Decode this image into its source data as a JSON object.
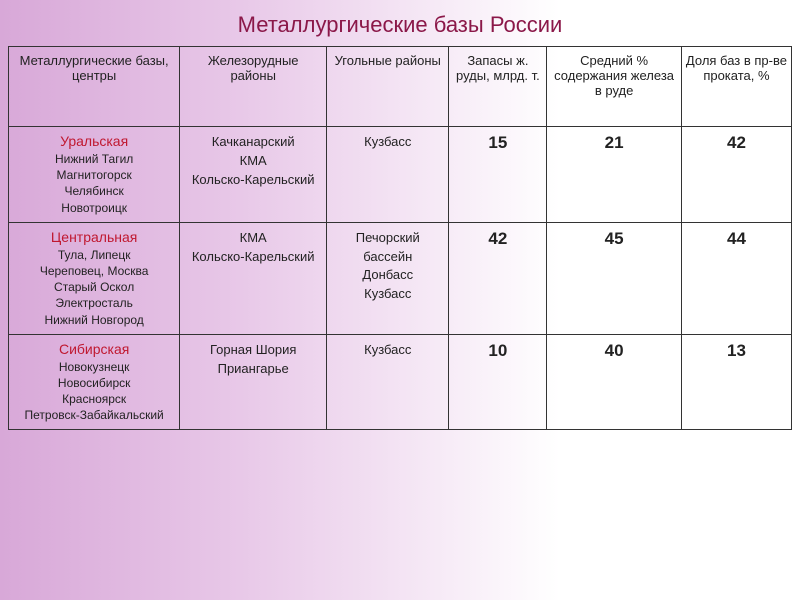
{
  "title": "Металлургические базы России",
  "headers": {
    "c1": "Металлургические базы, центры",
    "c2": "Железорудные районы",
    "c3": "Угольные районы",
    "c4": "Запасы ж. руды, млрд. т.",
    "c5": "Средний % содержания железа в руде",
    "c6": "Доля баз в пр-ве проката, %"
  },
  "rows": [
    {
      "base": "Уральская",
      "cities": "Нижний Тагил\nМагнитогорск\nЧелябинск\nНовотроицк",
      "iron_regions": "Качканарский\nКМА\nКольско-Карельский",
      "coal_regions": "Кузбасс",
      "reserves": "15",
      "iron_pct": "21",
      "share": "42"
    },
    {
      "base": "Центральная",
      "cities": "Тула, Липецк\nЧереповец, Москва\nСтарый Оскол\nЭлектросталь\nНижний Новгород",
      "iron_regions": "КМА\nКольско-Карельский",
      "coal_regions": "Печорский бассейн\nДонбасс\nКузбасс",
      "reserves": "42",
      "iron_pct": "45",
      "share": "44"
    },
    {
      "base": "Сибирская",
      "cities": "Новокузнецк\nНовосибирск\nКрасноярск\nПетровск-Забайкальский",
      "iron_regions": "Горная Шория\nПриангарье",
      "coal_regions": "Кузбасс",
      "reserves": "10",
      "iron_pct": "40",
      "share": "13"
    }
  ]
}
